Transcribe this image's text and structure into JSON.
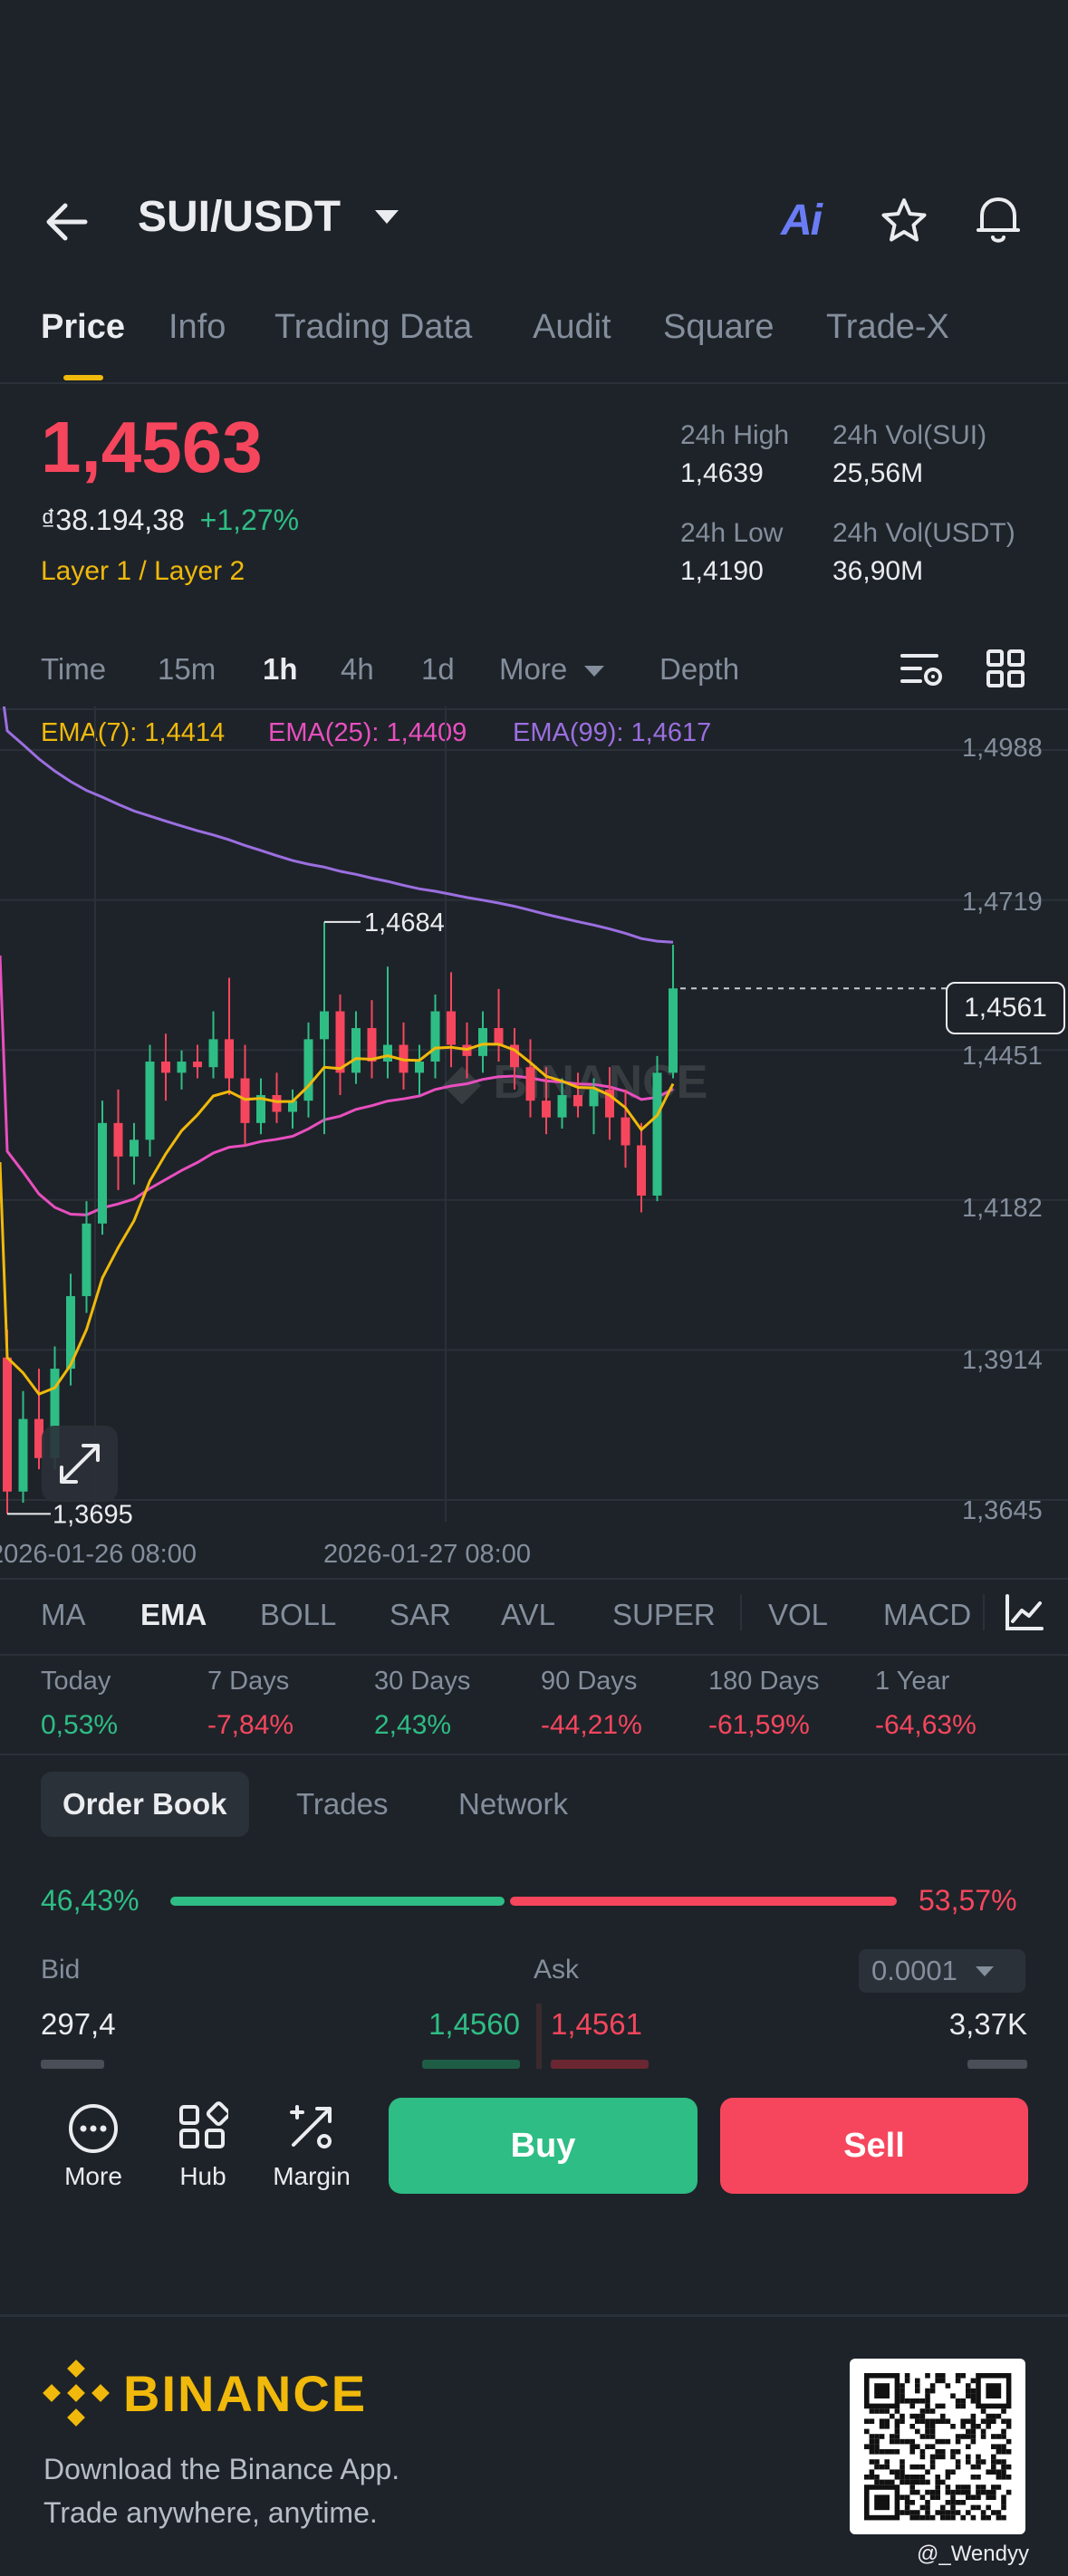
{
  "header": {
    "title": "SUI/USDT",
    "ai_label": "Ai",
    "back_icon": "arrow-left-icon",
    "star_icon": "star-icon",
    "bell_icon": "bell-icon"
  },
  "tabs": [
    {
      "label": "Price",
      "active": true
    },
    {
      "label": "Info"
    },
    {
      "label": "Trading Data"
    },
    {
      "label": "Audit"
    },
    {
      "label": "Square"
    },
    {
      "label": "Trade-X"
    }
  ],
  "price": {
    "last": "1,4563",
    "fiat": "₫38.194,38",
    "change": "+1,27%",
    "tags": "Layer 1 / Layer 2",
    "high_label": "24h High",
    "high": "1,4639",
    "low_label": "24h Low",
    "low": "1,4190",
    "vol_sui_label": "24h Vol(SUI)",
    "vol_sui": "25,56M",
    "vol_usdt_label": "24h Vol(USDT)",
    "vol_usdt": "36,90M"
  },
  "timeframes": [
    "Time",
    "15m",
    "1h",
    "4h",
    "1d",
    "More",
    "Depth"
  ],
  "ema": {
    "ema7": "EMA(7): 1,4414",
    "ema25": "EMA(25): 1,4409",
    "ema99": "EMA(99): 1,4617"
  },
  "chart": {
    "y_labels": [
      "1,4988",
      "1,4719",
      "1,4451",
      "1,4182",
      "1,3914",
      "1,3645"
    ],
    "x_labels": [
      "2026-01-26 08:00",
      "2026-01-27 08:00"
    ],
    "current_price": "1,4561",
    "high_marker": "1,4684",
    "low_marker": "1,3695",
    "colors": {
      "up": "#2ebd85",
      "down": "#f6465d",
      "ema7": "#f0b90b",
      "ema25": "#e84fbf",
      "ema99": "#9b6fe0"
    }
  },
  "chart_data": {
    "type": "candlestick",
    "interval": "1h",
    "ylim": [
      1.3645,
      1.4988
    ],
    "ohlc": [
      [
        1.39,
        1.395,
        1.362,
        1.366
      ],
      [
        1.366,
        1.384,
        1.364,
        1.379
      ],
      [
        1.379,
        1.388,
        1.37,
        1.372
      ],
      [
        1.372,
        1.392,
        1.37,
        1.388
      ],
      [
        1.388,
        1.405,
        1.385,
        1.401
      ],
      [
        1.401,
        1.418,
        1.398,
        1.414
      ],
      [
        1.414,
        1.436,
        1.412,
        1.432
      ],
      [
        1.432,
        1.438,
        1.42,
        1.426
      ],
      [
        1.426,
        1.432,
        1.421,
        1.429
      ],
      [
        1.429,
        1.446,
        1.426,
        1.443
      ],
      [
        1.443,
        1.448,
        1.436,
        1.441
      ],
      [
        1.441,
        1.445,
        1.438,
        1.443
      ],
      [
        1.443,
        1.446,
        1.44,
        1.442
      ],
      [
        1.442,
        1.452,
        1.44,
        1.447
      ],
      [
        1.447,
        1.458,
        1.437,
        1.44
      ],
      [
        1.44,
        1.446,
        1.428,
        1.432
      ],
      [
        1.432,
        1.44,
        1.43,
        1.437
      ],
      [
        1.437,
        1.441,
        1.432,
        1.434
      ],
      [
        1.434,
        1.438,
        1.431,
        1.436
      ],
      [
        1.436,
        1.45,
        1.433,
        1.447
      ],
      [
        1.447,
        1.468,
        1.43,
        1.452
      ],
      [
        1.452,
        1.455,
        1.437,
        1.441
      ],
      [
        1.441,
        1.452,
        1.439,
        1.449
      ],
      [
        1.449,
        1.454,
        1.44,
        1.443
      ],
      [
        1.443,
        1.46,
        1.44,
        1.446
      ],
      [
        1.446,
        1.45,
        1.438,
        1.441
      ],
      [
        1.441,
        1.446,
        1.437,
        1.443
      ],
      [
        1.443,
        1.455,
        1.44,
        1.452
      ],
      [
        1.452,
        1.459,
        1.442,
        1.446
      ],
      [
        1.446,
        1.45,
        1.44,
        1.444
      ],
      [
        1.444,
        1.452,
        1.441,
        1.449
      ],
      [
        1.449,
        1.456,
        1.443,
        1.446
      ],
      [
        1.446,
        1.449,
        1.438,
        1.442
      ],
      [
        1.442,
        1.447,
        1.433,
        1.436
      ],
      [
        1.436,
        1.442,
        1.43,
        1.433
      ],
      [
        1.433,
        1.44,
        1.431,
        1.437
      ],
      [
        1.437,
        1.441,
        1.433,
        1.435
      ],
      [
        1.435,
        1.44,
        1.43,
        1.438
      ],
      [
        1.438,
        1.442,
        1.429,
        1.433
      ],
      [
        1.433,
        1.438,
        1.424,
        1.428
      ],
      [
        1.428,
        1.432,
        1.416,
        1.419
      ],
      [
        1.419,
        1.444,
        1.418,
        1.441
      ],
      [
        1.441,
        1.4639,
        1.44,
        1.4561
      ]
    ]
  },
  "indicators": [
    "MA",
    "EMA",
    "BOLL",
    "SAR",
    "AVL",
    "SUPER",
    "VOL",
    "MACD"
  ],
  "performance": [
    {
      "label": "Today",
      "value": "0,53%",
      "dir": "up"
    },
    {
      "label": "7 Days",
      "value": "-7,84%",
      "dir": "down"
    },
    {
      "label": "30 Days",
      "value": "2,43%",
      "dir": "up"
    },
    {
      "label": "90 Days",
      "value": "-44,21%",
      "dir": "down"
    },
    {
      "label": "180 Days",
      "value": "-61,59%",
      "dir": "down"
    },
    {
      "label": "1 Year",
      "value": "-64,63%",
      "dir": "down"
    }
  ],
  "orderbook": {
    "tabs": [
      "Order Book",
      "Trades",
      "Network"
    ],
    "bid_pct": "46,43%",
    "ask_pct": "53,57%",
    "bid_ratio": 0.4643,
    "bid_label": "Bid",
    "ask_label": "Ask",
    "precision": "0.0001",
    "rows": [
      {
        "bid_qty": "297,4",
        "bid_price": "1,4560",
        "ask_price": "1,4561",
        "ask_qty": "3,37K"
      }
    ]
  },
  "actions": {
    "more": "More",
    "hub": "Hub",
    "margin": "Margin",
    "buy": "Buy",
    "sell": "Sell"
  },
  "footer": {
    "brand": "BINANCE",
    "line1": "Download the Binance App.",
    "line2": "Trade anywhere, anytime.",
    "watermark": "@_Wendyy"
  }
}
